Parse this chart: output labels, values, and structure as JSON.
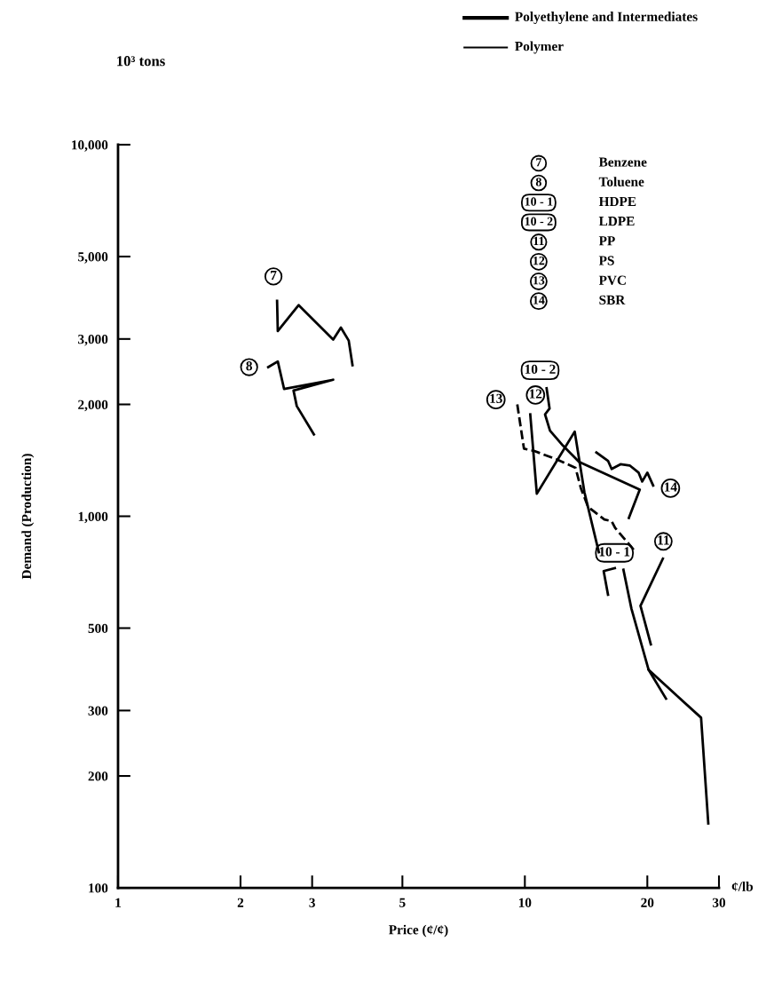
{
  "chart_data": {
    "type": "line",
    "xlabel": "Price (¢/¢)",
    "ylabel": "Demand (Production)",
    "log": "xy",
    "grid": false,
    "legend": false,
    "marker": "none",
    "xlim": [
      1,
      30
    ],
    "xticks": [
      1,
      2,
      3,
      5,
      10,
      20,
      30
    ],
    "ylim": [
      100,
      10000
    ],
    "yticks": [
      {
        "value": 100,
        "label": "100"
      },
      {
        "value": 200,
        "label": "200"
      },
      {
        "value": 300,
        "label": "300"
      },
      {
        "value": 500,
        "label": "500"
      },
      {
        "value": 1000,
        "label": "1,000"
      },
      {
        "value": 2000,
        "label": "2,000"
      },
      {
        "value": 3000,
        "label": "3,000"
      },
      {
        "value": 5000,
        "label": "5,000"
      },
      {
        "value": 10000,
        "label": "10,000"
      }
    ],
    "series": [
      {
        "color": "#000000",
        "x": [
          2.46,
          2.47,
          2.78,
          3.38,
          3.53,
          3.69,
          3.77
        ],
        "values": [
          3800,
          3150,
          3700,
          2990,
          3220,
          2970,
          2550
        ]
      },
      {
        "color": "#000000",
        "x": [
          2.34,
          2.47,
          2.56,
          3.38,
          2.7,
          2.75,
          3.03
        ],
        "values": [
          2520,
          2610,
          2200,
          2330,
          2180,
          1980,
          1660
        ]
      },
      {
        "color": "#000000",
        "x": [
          16.64,
          15.62,
          16.01
        ],
        "values": [
          725,
          712,
          615
        ]
      },
      {
        "color": "#000000",
        "x": [
          11.31,
          11.5,
          11.21,
          11.53,
          12.4,
          13.59,
          19.16,
          18.02,
          17.7,
          17.47,
          18.28,
          20.15,
          27.11,
          28.24
        ],
        "values": [
          2210,
          1950,
          1880,
          1700,
          1550,
          1400,
          1180,
          990,
          null,
          718,
          564,
          386,
          287,
          149
        ]
      },
      {
        "color": "#000000",
        "x": [
          21.84,
          19.24,
          20.4,
          20.3,
          20.15,
          22.23
        ],
        "values": [
          769,
          574,
          452,
          null,
          386,
          323
        ]
      },
      {
        "color": "#000000",
        "x": [
          10.31,
          10.7,
          13.26,
          14.01,
          15.2
        ],
        "values": [
          1880,
          1150,
          1690,
          1160,
          800
        ]
      },
      {
        "color": "#000000",
        "line_style": "dashed",
        "x": [
          9.58,
          9.95,
          10.52,
          12.02,
          13.32,
          13.73,
          14.3,
          15.68,
          16.34,
          16.67,
          18.66
        ],
        "values": [
          2000,
          1520,
          1500,
          1420,
          1350,
          1190,
          1060,
          980,
          970,
          930,
          805
        ]
      },
      {
        "color": "#000000",
        "x": [
          14.99,
          16.01,
          16.34,
          17.18,
          18.1,
          19.04,
          19.43,
          20.0,
          20.67
        ],
        "values": [
          1485,
          1410,
          1340,
          1380,
          1370,
          1310,
          1240,
          1310,
          1210
        ]
      }
    ],
    "annotations": [
      {
        "text": "7",
        "x": 2.41,
        "y": 4420
      },
      {
        "text": "8",
        "x": 2.1,
        "y": 2520
      },
      {
        "text": "10 - 1",
        "x": 16.6,
        "y": 797
      },
      {
        "text": "10 - 2",
        "x": 10.9,
        "y": 2470
      },
      {
        "text": "11",
        "x": 21.9,
        "y": 856
      },
      {
        "text": "12",
        "x": 10.62,
        "y": 2120
      },
      {
        "text": "13",
        "x": 8.49,
        "y": 2060
      },
      {
        "text": "14",
        "x": 22.8,
        "y": 1190
      },
      "Polyethylene and Intermediates",
      "Polymer",
      "10³ tons",
      "¢/lb",
      "Benzene",
      "Toluene",
      "HDPE",
      "LDPE",
      "PP",
      "PS",
      "PVC",
      "SBR"
    ]
  }
}
